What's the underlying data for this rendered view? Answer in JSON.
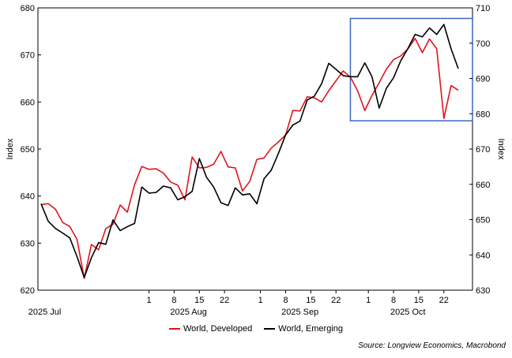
{
  "chart_data": {
    "type": "line",
    "title": "",
    "ylabel_left": "Index",
    "ylabel_right": "Index",
    "ylim_left": [
      620,
      680
    ],
    "ylim_right": [
      630,
      710
    ],
    "yticks_left": [
      620,
      630,
      640,
      650,
      660,
      670,
      680
    ],
    "yticks_right": [
      630,
      640,
      650,
      660,
      670,
      680,
      690,
      700,
      710
    ],
    "x_start": "2025-07-02",
    "x_end": "2025-10-26",
    "x_ticks": [
      {
        "date": "2025-08-01",
        "label": "1"
      },
      {
        "date": "2025-08-08",
        "label": "8"
      },
      {
        "date": "2025-08-15",
        "label": "15"
      },
      {
        "date": "2025-08-22",
        "label": "22"
      },
      {
        "date": "2025-09-01",
        "label": "1"
      },
      {
        "date": "2025-09-08",
        "label": "8"
      },
      {
        "date": "2025-09-15",
        "label": "15"
      },
      {
        "date": "2025-09-22",
        "label": "22"
      },
      {
        "date": "2025-10-01",
        "label": "1"
      },
      {
        "date": "2025-10-08",
        "label": "8"
      },
      {
        "date": "2025-10-15",
        "label": "15"
      },
      {
        "date": "2025-10-22",
        "label": "22"
      }
    ],
    "month_labels": [
      {
        "date": "2025-07-03",
        "label": "2025 Jul"
      },
      {
        "date": "2025-08-12",
        "label": "2025 Aug"
      },
      {
        "date": "2025-09-12",
        "label": "2025 Sep"
      },
      {
        "date": "2025-10-12",
        "label": "2025 Oct"
      }
    ],
    "highlight_box": {
      "x_from": "2025-09-26",
      "x_to": "2025-10-26",
      "y_from": 678,
      "y_to": 707,
      "axis": "right",
      "color": "#3a66c4"
    },
    "series": [
      {
        "name": "World, Developed",
        "axis": "left",
        "color": "#e0141e",
        "points": [
          [
            "2025-07-02",
            638.2
          ],
          [
            "2025-07-04",
            638.4
          ],
          [
            "2025-07-06",
            637.2
          ],
          [
            "2025-07-08",
            634.4
          ],
          [
            "2025-07-10",
            633.5
          ],
          [
            "2025-07-12",
            630.8
          ],
          [
            "2025-07-14",
            622.5
          ],
          [
            "2025-07-16",
            629.7
          ],
          [
            "2025-07-18",
            628.6
          ],
          [
            "2025-07-20",
            633.1
          ],
          [
            "2025-07-22",
            634.0
          ],
          [
            "2025-07-24",
            638.1
          ],
          [
            "2025-07-26",
            636.6
          ],
          [
            "2025-07-28",
            642.4
          ],
          [
            "2025-07-30",
            646.3
          ],
          [
            "2025-08-01",
            645.7
          ],
          [
            "2025-08-03",
            645.8
          ],
          [
            "2025-08-05",
            644.9
          ],
          [
            "2025-08-07",
            643.0
          ],
          [
            "2025-08-09",
            642.3
          ],
          [
            "2025-08-11",
            639.2
          ],
          [
            "2025-08-13",
            648.3
          ],
          [
            "2025-08-15",
            646.0
          ],
          [
            "2025-08-17",
            646.1
          ],
          [
            "2025-08-19",
            646.8
          ],
          [
            "2025-08-21",
            649.5
          ],
          [
            "2025-08-23",
            646.2
          ],
          [
            "2025-08-25",
            646.0
          ],
          [
            "2025-08-27",
            641.1
          ],
          [
            "2025-08-29",
            643.1
          ],
          [
            "2025-08-31",
            647.8
          ],
          [
            "2025-09-02",
            648.1
          ],
          [
            "2025-09-04",
            650.2
          ],
          [
            "2025-09-06",
            651.5
          ],
          [
            "2025-09-08",
            653.0
          ],
          [
            "2025-09-10",
            658.2
          ],
          [
            "2025-09-12",
            658.1
          ],
          [
            "2025-09-14",
            661.1
          ],
          [
            "2025-09-16",
            660.9
          ],
          [
            "2025-09-18",
            660.0
          ],
          [
            "2025-09-20",
            662.4
          ],
          [
            "2025-09-22",
            664.5
          ],
          [
            "2025-09-24",
            666.6
          ],
          [
            "2025-09-26",
            665.3
          ],
          [
            "2025-09-28",
            662.4
          ],
          [
            "2025-09-30",
            658.2
          ],
          [
            "2025-10-02",
            661.4
          ],
          [
            "2025-10-04",
            664.1
          ],
          [
            "2025-10-06",
            667.0
          ],
          [
            "2025-10-08",
            669.0
          ],
          [
            "2025-10-10",
            669.8
          ],
          [
            "2025-10-12",
            671.3
          ],
          [
            "2025-10-14",
            673.5
          ],
          [
            "2025-10-16",
            670.5
          ],
          [
            "2025-10-18",
            673.4
          ],
          [
            "2025-10-20",
            671.3
          ],
          [
            "2025-10-22",
            656.5
          ],
          [
            "2025-10-24",
            663.5
          ],
          [
            "2025-10-26",
            662.5
          ]
        ]
      },
      {
        "name": "World, Emerging",
        "axis": "right",
        "color": "#000000",
        "points": [
          [
            "2025-07-02",
            654.5
          ],
          [
            "2025-07-04",
            649.5
          ],
          [
            "2025-07-06",
            647.5
          ],
          [
            "2025-07-08",
            646.2
          ],
          [
            "2025-07-10",
            644.8
          ],
          [
            "2025-07-12",
            639.5
          ],
          [
            "2025-07-14",
            633.6
          ],
          [
            "2025-07-16",
            639.2
          ],
          [
            "2025-07-18",
            643.5
          ],
          [
            "2025-07-20",
            643.0
          ],
          [
            "2025-07-22",
            649.9
          ],
          [
            "2025-07-24",
            646.9
          ],
          [
            "2025-07-26",
            648.0
          ],
          [
            "2025-07-28",
            648.9
          ],
          [
            "2025-07-30",
            659.2
          ],
          [
            "2025-08-01",
            657.5
          ],
          [
            "2025-08-03",
            657.7
          ],
          [
            "2025-08-05",
            659.5
          ],
          [
            "2025-08-07",
            659.0
          ],
          [
            "2025-08-09",
            655.6
          ],
          [
            "2025-08-11",
            656.5
          ],
          [
            "2025-08-13",
            658.0
          ],
          [
            "2025-08-15",
            667.3
          ],
          [
            "2025-08-17",
            662.0
          ],
          [
            "2025-08-19",
            659.2
          ],
          [
            "2025-08-21",
            654.8
          ],
          [
            "2025-08-23",
            654.0
          ],
          [
            "2025-08-25",
            659.0
          ],
          [
            "2025-08-27",
            657.0
          ],
          [
            "2025-08-29",
            657.3
          ],
          [
            "2025-08-31",
            654.5
          ],
          [
            "2025-09-02",
            661.6
          ],
          [
            "2025-09-04",
            664.0
          ],
          [
            "2025-09-06",
            668.8
          ],
          [
            "2025-09-08",
            674.0
          ],
          [
            "2025-09-10",
            676.8
          ],
          [
            "2025-09-12",
            677.9
          ],
          [
            "2025-09-14",
            683.9
          ],
          [
            "2025-09-16",
            685.0
          ],
          [
            "2025-09-18",
            688.5
          ],
          [
            "2025-09-20",
            694.3
          ],
          [
            "2025-09-22",
            692.6
          ],
          [
            "2025-09-24",
            690.8
          ],
          [
            "2025-09-26",
            690.5
          ],
          [
            "2025-09-28",
            690.5
          ],
          [
            "2025-09-30",
            694.4
          ],
          [
            "2025-10-02",
            690.5
          ],
          [
            "2025-10-04",
            681.6
          ],
          [
            "2025-10-06",
            687.2
          ],
          [
            "2025-10-08",
            690.2
          ],
          [
            "2025-10-10",
            695.0
          ],
          [
            "2025-10-12",
            698.5
          ],
          [
            "2025-10-14",
            702.5
          ],
          [
            "2025-10-16",
            701.8
          ],
          [
            "2025-10-18",
            704.3
          ],
          [
            "2025-10-20",
            702.5
          ],
          [
            "2025-10-22",
            705.3
          ],
          [
            "2025-10-24",
            698.4
          ],
          [
            "2025-10-26",
            692.8
          ]
        ]
      }
    ],
    "legend": [
      {
        "label": "World, Developed",
        "color": "#e0141e"
      },
      {
        "label": "World, Emerging",
        "color": "#000000"
      }
    ],
    "legend_position": "bottom-center",
    "source": "Source: Longview Economics, Macrobond"
  }
}
